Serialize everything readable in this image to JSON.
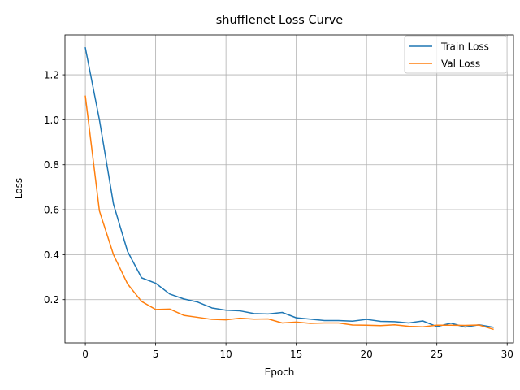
{
  "chart_data": {
    "type": "line",
    "title": "shufflenet Loss Curve",
    "xlabel": "Epoch",
    "ylabel": "Loss",
    "xlim": [
      -1.45,
      30.45
    ],
    "ylim": [
      0.0074,
      1.3774
    ],
    "xticks": [
      0,
      5,
      10,
      15,
      20,
      25,
      30
    ],
    "yticks": [
      0.2,
      0.4,
      0.6,
      0.8,
      1.0,
      1.2
    ],
    "ytick_labels": [
      "0.2",
      "0.4",
      "0.6",
      "0.8",
      "1.0",
      "1.2"
    ],
    "grid": true,
    "legend_position": "upper right",
    "x": [
      0,
      1,
      2,
      3,
      4,
      5,
      6,
      7,
      8,
      9,
      10,
      11,
      12,
      13,
      14,
      15,
      16,
      17,
      18,
      19,
      20,
      21,
      22,
      23,
      24,
      25,
      26,
      27,
      28,
      29
    ],
    "series": [
      {
        "name": "Train Loss",
        "color": "#1f77b4",
        "values": [
          1.32,
          1.0,
          0.625,
          0.415,
          0.297,
          0.273,
          0.225,
          0.203,
          0.189,
          0.163,
          0.153,
          0.15,
          0.138,
          0.136,
          0.143,
          0.119,
          0.113,
          0.107,
          0.107,
          0.104,
          0.112,
          0.103,
          0.102,
          0.096,
          0.105,
          0.08,
          0.095,
          0.078,
          0.088,
          0.077
        ]
      },
      {
        "name": "Val Loss",
        "color": "#ff7f0e",
        "values": [
          1.105,
          0.595,
          0.4,
          0.27,
          0.192,
          0.156,
          0.158,
          0.13,
          0.121,
          0.112,
          0.11,
          0.117,
          0.113,
          0.114,
          0.096,
          0.1,
          0.094,
          0.096,
          0.096,
          0.087,
          0.086,
          0.084,
          0.088,
          0.081,
          0.079,
          0.086,
          0.086,
          0.085,
          0.087,
          0.068
        ]
      }
    ]
  }
}
